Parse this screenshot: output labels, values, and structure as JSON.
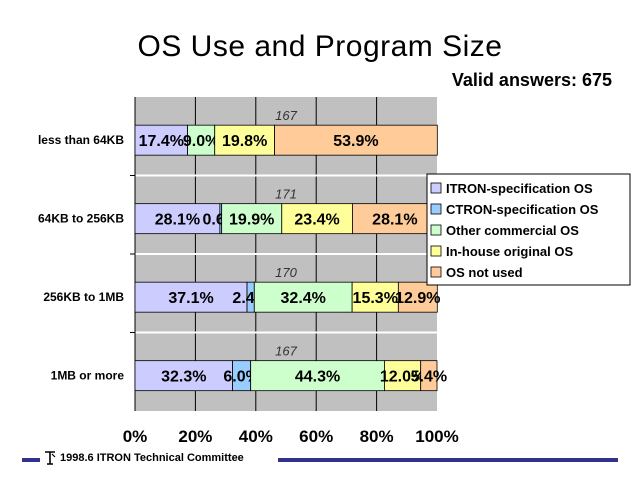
{
  "title": "OS Use and Program Size",
  "subtitle": "Valid answers: 675",
  "footer": {
    "text": "1998.6  ITRON Technical Committee",
    "logo_icon": "itron-logo-icon"
  },
  "colors": {
    "plot_bg": "#c0c0c0",
    "series": [
      "#ccccff",
      "#99ccff",
      "#ccffcc",
      "#ffff99",
      "#ffcc99"
    ],
    "footer_rule": "#33338f"
  },
  "chart_data": {
    "type": "bar",
    "orientation": "horizontal",
    "stacked": "percent",
    "title": "OS Use and Program Size",
    "categories": [
      "less than 64KB",
      "64KB to 256KB",
      "256KB to 1MB",
      "1MB or more"
    ],
    "totals": [
      167,
      171,
      170,
      167
    ],
    "series": [
      {
        "name": "ITRON-specification OS",
        "values": [
          17.4,
          28.1,
          37.1,
          32.3
        ],
        "labels": [
          "17.4%",
          "28.1%",
          "37.1%",
          "32.3%"
        ]
      },
      {
        "name": "CTRON-specification OS",
        "values": [
          0.0,
          0.6,
          2.4,
          6.0
        ],
        "labels": [
          "",
          "0.6%",
          "2.4%",
          "6.0%"
        ]
      },
      {
        "name": "Other commercial OS",
        "values": [
          9.0,
          19.9,
          32.4,
          44.3
        ],
        "labels": [
          "9.0%",
          "19.9%",
          "32.4%",
          "44.3%"
        ]
      },
      {
        "name": "In-house original OS",
        "values": [
          19.8,
          23.4,
          15.3,
          12.0
        ],
        "labels": [
          "19.8%",
          "23.4%",
          "15.3%",
          "12.0%"
        ]
      },
      {
        "name": "OS not used",
        "values": [
          53.9,
          28.1,
          12.9,
          5.4
        ],
        "labels": [
          "53.9%",
          "28.1%",
          "12.9%",
          "5.4%"
        ]
      }
    ],
    "xlim": [
      0,
      100
    ],
    "xticks": [
      "0%",
      "20%",
      "40%",
      "60%",
      "80%",
      "100%"
    ],
    "grid": true,
    "legend": "right"
  }
}
